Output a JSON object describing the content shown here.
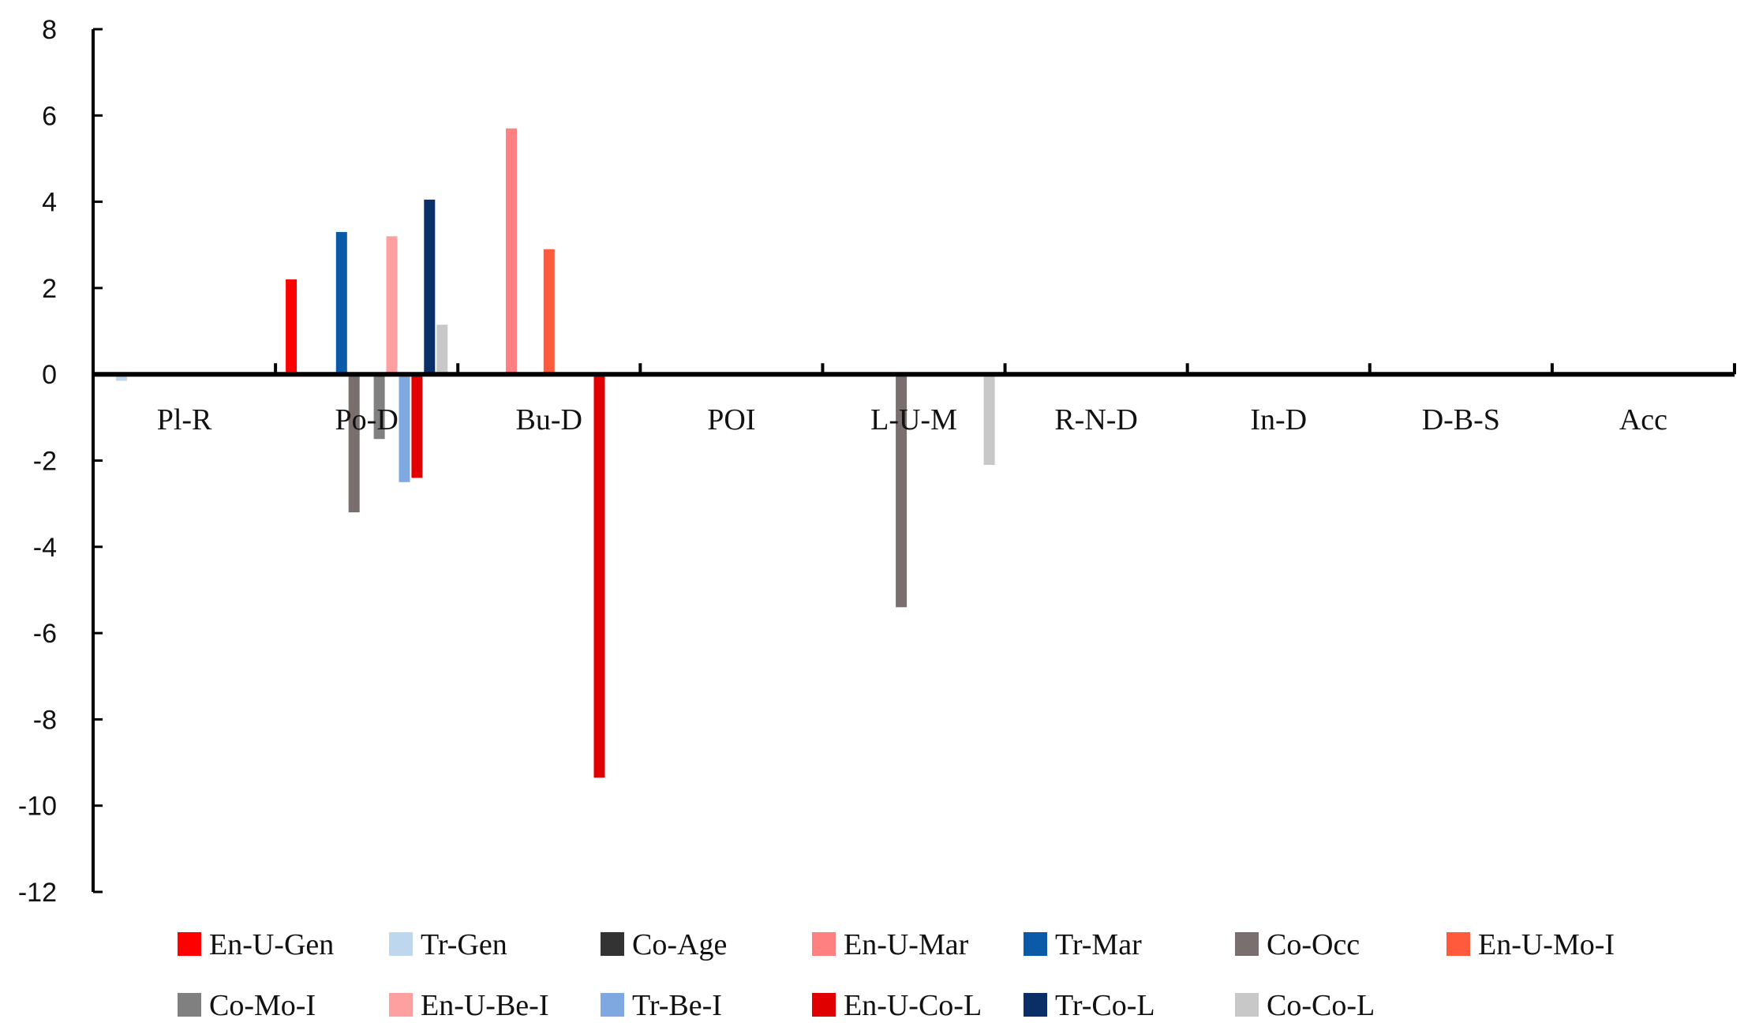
{
  "chart_data": {
    "type": "bar",
    "title": "",
    "xlabel": "",
    "ylabel": "",
    "ylim": [
      -12,
      8
    ],
    "yticks": [
      8,
      6,
      4,
      2,
      0,
      -2,
      -4,
      -6,
      -8,
      -10,
      -12
    ],
    "ytick_labels": [
      "8",
      "6",
      "4",
      "2",
      "0",
      "-2",
      "-4",
      "-6",
      "-8",
      "-10",
      "-12"
    ],
    "categories": [
      "Pl-R",
      "Po-D",
      "Bu-D",
      "POI",
      "L-U-M",
      "R-N-D",
      "In-D",
      "D-B-S",
      "Acc"
    ],
    "grid": false,
    "legend_position": "bottom",
    "series": [
      {
        "name": "En-U-Gen",
        "color": "#ff0000",
        "values": [
          0,
          2.2,
          0,
          0,
          0,
          0,
          0,
          0,
          0
        ]
      },
      {
        "name": "Tr-Gen",
        "color": "#bdd7ee",
        "values": [
          -0.15,
          0,
          0,
          0,
          0,
          0,
          0,
          0,
          0
        ]
      },
      {
        "name": "Co-Age",
        "color": "#333333",
        "values": [
          0,
          0.05,
          0,
          0,
          0,
          0,
          0,
          0,
          0
        ]
      },
      {
        "name": "En-U-Mar",
        "color": "#ff8080",
        "values": [
          0,
          0,
          5.7,
          0,
          0,
          0,
          0,
          0,
          0
        ]
      },
      {
        "name": "Tr-Mar",
        "color": "#0b5aa8",
        "values": [
          0,
          3.3,
          0,
          0,
          0,
          0,
          0,
          0,
          0
        ]
      },
      {
        "name": "Co-Occ",
        "color": "#7a6f6f",
        "values": [
          0,
          -3.2,
          0,
          0,
          -5.4,
          0,
          0,
          0,
          0
        ]
      },
      {
        "name": "En-U-Mo-I",
        "color": "#ff5a3c",
        "values": [
          0,
          0,
          2.9,
          0,
          0,
          0,
          -0.05,
          0,
          0
        ]
      },
      {
        "name": "Co-Mo-I",
        "color": "#808080",
        "values": [
          -0.05,
          -1.5,
          0,
          0,
          0,
          -0.05,
          0,
          0,
          -0.05
        ]
      },
      {
        "name": "En-U-Be-I",
        "color": "#ffa0a0",
        "values": [
          0,
          3.2,
          0,
          0,
          0,
          0,
          0,
          0,
          0
        ]
      },
      {
        "name": "Tr-Be-I",
        "color": "#80a8e0",
        "values": [
          0,
          -2.5,
          0,
          0,
          0,
          0,
          0,
          0,
          0
        ]
      },
      {
        "name": "En-U-Co-L",
        "color": "#e00000",
        "values": [
          0,
          -2.4,
          -9.35,
          0,
          0,
          0,
          0,
          0,
          0
        ]
      },
      {
        "name": "Tr-Co-L",
        "color": "#0a2f66",
        "values": [
          0,
          4.05,
          0,
          0,
          0,
          0,
          0,
          0,
          0
        ]
      },
      {
        "name": "Co-Co-L",
        "color": "#c8c8c8",
        "values": [
          0,
          1.15,
          0,
          0,
          -2.1,
          0,
          0,
          0,
          0
        ]
      }
    ]
  }
}
